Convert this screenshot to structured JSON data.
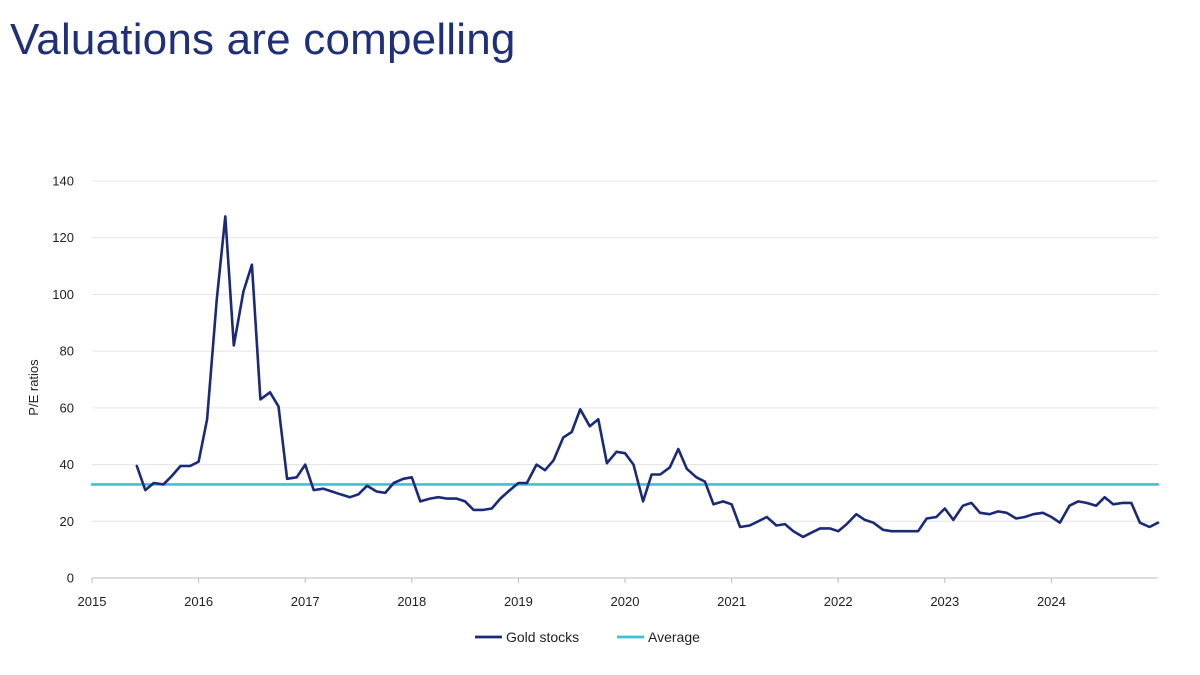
{
  "title": "Valuations are compelling",
  "colors": {
    "title": "#1f2f7a",
    "gold_stocks": "#1a2a78",
    "average": "#3fc0d6",
    "grid": "#e3e3e3"
  },
  "chart_data": {
    "type": "line",
    "title": "Valuations are compelling",
    "xlabel": "",
    "ylabel": "P/E ratios",
    "xlim": [
      2015,
      2025
    ],
    "ylim": [
      0,
      140
    ],
    "x_ticks": [
      "2015",
      "2016",
      "2017",
      "2018",
      "2019",
      "2020",
      "2021",
      "2022",
      "2023",
      "2024"
    ],
    "y_ticks": [
      "0",
      "20",
      "40",
      "60",
      "80",
      "100",
      "120",
      "140"
    ],
    "grid": "horizontal",
    "legend": "bottom",
    "series": [
      {
        "name": "Gold stocks",
        "points": [
          [
            2015.42,
            39.5
          ],
          [
            2015.5,
            31.0
          ],
          [
            2015.58,
            33.5
          ],
          [
            2015.67,
            33.0
          ],
          [
            2015.75,
            36.0
          ],
          [
            2015.83,
            39.5
          ],
          [
            2015.92,
            39.5
          ],
          [
            2016.0,
            41.0
          ],
          [
            2016.08,
            56.0
          ],
          [
            2016.17,
            98.0
          ],
          [
            2016.25,
            127.5
          ],
          [
            2016.33,
            82.0
          ],
          [
            2016.42,
            101.0
          ],
          [
            2016.5,
            110.5
          ],
          [
            2016.58,
            63.0
          ],
          [
            2016.67,
            65.5
          ],
          [
            2016.75,
            60.5
          ],
          [
            2016.83,
            35.0
          ],
          [
            2016.92,
            35.5
          ],
          [
            2017.0,
            40.0
          ],
          [
            2017.08,
            31.0
          ],
          [
            2017.17,
            31.5
          ],
          [
            2017.25,
            30.5
          ],
          [
            2017.33,
            29.5
          ],
          [
            2017.42,
            28.5
          ],
          [
            2017.5,
            29.5
          ],
          [
            2017.58,
            32.5
          ],
          [
            2017.67,
            30.5
          ],
          [
            2017.75,
            30.0
          ],
          [
            2017.83,
            33.5
          ],
          [
            2017.92,
            35.0
          ],
          [
            2018.0,
            35.5
          ],
          [
            2018.08,
            27.0
          ],
          [
            2018.17,
            28.0
          ],
          [
            2018.25,
            28.5
          ],
          [
            2018.33,
            28.0
          ],
          [
            2018.42,
            28.0
          ],
          [
            2018.5,
            27.0
          ],
          [
            2018.58,
            24.0
          ],
          [
            2018.67,
            24.0
          ],
          [
            2018.75,
            24.5
          ],
          [
            2018.83,
            28.0
          ],
          [
            2018.92,
            31.0
          ],
          [
            2019.0,
            33.5
          ],
          [
            2019.08,
            33.5
          ],
          [
            2019.17,
            40.0
          ],
          [
            2019.25,
            38.0
          ],
          [
            2019.33,
            41.5
          ],
          [
            2019.42,
            49.5
          ],
          [
            2019.5,
            51.5
          ],
          [
            2019.58,
            59.5
          ],
          [
            2019.67,
            53.5
          ],
          [
            2019.75,
            56.0
          ],
          [
            2019.83,
            40.5
          ],
          [
            2019.92,
            44.5
          ],
          [
            2020.0,
            44.0
          ],
          [
            2020.08,
            40.0
          ],
          [
            2020.17,
            27.0
          ],
          [
            2020.25,
            36.5
          ],
          [
            2020.33,
            36.5
          ],
          [
            2020.42,
            39.0
          ],
          [
            2020.5,
            45.5
          ],
          [
            2020.58,
            38.5
          ],
          [
            2020.67,
            35.5
          ],
          [
            2020.75,
            34.0
          ],
          [
            2020.83,
            26.0
          ],
          [
            2020.92,
            27.0
          ],
          [
            2021.0,
            26.0
          ],
          [
            2021.08,
            18.0
          ],
          [
            2021.17,
            18.5
          ],
          [
            2021.25,
            20.0
          ],
          [
            2021.33,
            21.5
          ],
          [
            2021.42,
            18.5
          ],
          [
            2021.5,
            19.0
          ],
          [
            2021.58,
            16.5
          ],
          [
            2021.67,
            14.5
          ],
          [
            2021.75,
            16.0
          ],
          [
            2021.83,
            17.5
          ],
          [
            2021.92,
            17.5
          ],
          [
            2022.0,
            16.5
          ],
          [
            2022.08,
            19.0
          ],
          [
            2022.17,
            22.5
          ],
          [
            2022.25,
            20.5
          ],
          [
            2022.33,
            19.5
          ],
          [
            2022.42,
            17.0
          ],
          [
            2022.5,
            16.5
          ],
          [
            2022.58,
            16.5
          ],
          [
            2022.67,
            16.5
          ],
          [
            2022.75,
            16.5
          ],
          [
            2022.83,
            21.0
          ],
          [
            2022.92,
            21.5
          ],
          [
            2023.0,
            24.5
          ],
          [
            2023.08,
            20.5
          ],
          [
            2023.17,
            25.5
          ],
          [
            2023.25,
            26.5
          ],
          [
            2023.33,
            23.0
          ],
          [
            2023.42,
            22.5
          ],
          [
            2023.5,
            23.5
          ],
          [
            2023.58,
            23.0
          ],
          [
            2023.67,
            21.0
          ],
          [
            2023.75,
            21.5
          ],
          [
            2023.83,
            22.5
          ],
          [
            2023.92,
            23.0
          ],
          [
            2024.0,
            21.5
          ],
          [
            2024.08,
            19.5
          ],
          [
            2024.17,
            25.5
          ],
          [
            2024.25,
            27.0
          ],
          [
            2024.33,
            26.5
          ],
          [
            2024.42,
            25.5
          ],
          [
            2024.5,
            28.5
          ],
          [
            2024.58,
            26.0
          ],
          [
            2024.67,
            26.5
          ],
          [
            2024.75,
            26.5
          ],
          [
            2024.83,
            19.5
          ],
          [
            2024.92,
            18.0
          ],
          [
            2025.0,
            19.5
          ]
        ]
      },
      {
        "name": "Average",
        "points": [
          [
            2015.0,
            33.0
          ],
          [
            2025.0,
            33.0
          ]
        ]
      }
    ]
  }
}
